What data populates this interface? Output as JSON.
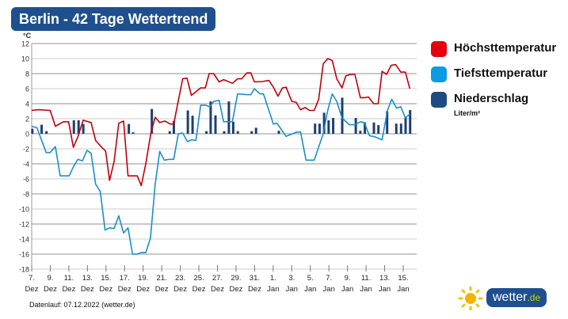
{
  "title": "Berlin - 42 Tage Wettertrend",
  "legend": [
    {
      "label": "Höchsttemperatur",
      "color": "#e3000f"
    },
    {
      "label": "Tiefsttemperatur",
      "color": "#0a9be3"
    },
    {
      "label": "Niederschlag",
      "color": "#1f4a84"
    }
  ],
  "legend_unit": "Liter/m²",
  "footer": "Datenlauf: 07.12.2022 (wetter.de)",
  "logo": {
    "main": "wetter",
    "suffix": ".de"
  },
  "chart_data": {
    "type": "line",
    "ylabel": "°C",
    "ylim": [
      -18,
      12
    ],
    "yticks": [
      12,
      10,
      8,
      6,
      4,
      2,
      0,
      -2,
      -4,
      -6,
      -8,
      -10,
      -12,
      -14,
      -16,
      -18
    ],
    "xlim": [
      0,
      42
    ],
    "grid": true,
    "legend_position": "right",
    "xticks": [
      {
        "day": "7.",
        "month": "Dez"
      },
      {
        "day": "9.",
        "month": "Dez"
      },
      {
        "day": "11.",
        "month": "Dez"
      },
      {
        "day": "13.",
        "month": "Dez"
      },
      {
        "day": "15.",
        "month": "Dez"
      },
      {
        "day": "17.",
        "month": "Dez"
      },
      {
        "day": "19.",
        "month": "Dez"
      },
      {
        "day": "21.",
        "month": "Dez"
      },
      {
        "day": "23.",
        "month": "Dez"
      },
      {
        "day": "25.",
        "month": "Dez"
      },
      {
        "day": "27.",
        "month": "Dez"
      },
      {
        "day": "29.",
        "month": "Dez"
      },
      {
        "day": "31.",
        "month": "Dez"
      },
      {
        "day": "1.",
        "month": "Jan"
      },
      {
        "day": "3.",
        "month": "Jan"
      },
      {
        "day": "5.",
        "month": "Jan"
      },
      {
        "day": "7.",
        "month": "Jan"
      },
      {
        "day": "9.",
        "month": "Jan"
      },
      {
        "day": "11.",
        "month": "Jan"
      },
      {
        "day": "13.",
        "month": "Jan"
      },
      {
        "day": "15.",
        "month": "Jan"
      }
    ],
    "series": [
      {
        "name": "Höchsttemperatur",
        "type": "line",
        "color": "#c0000c",
        "points": [
          [
            0,
            3.1
          ],
          [
            0.73,
            3.2
          ],
          [
            2.04,
            3.1
          ],
          [
            2.62,
            1.0
          ],
          [
            3.5,
            1.6
          ],
          [
            4.08,
            1.6
          ],
          [
            4.6,
            -1.8
          ],
          [
            5.1,
            -0.4
          ],
          [
            5.69,
            1.8
          ],
          [
            6.56,
            1.5
          ],
          [
            7.06,
            -0.9
          ],
          [
            7.73,
            -1.8
          ],
          [
            8.16,
            -2.3
          ],
          [
            8.6,
            -6.2
          ],
          [
            9.1,
            -3.7
          ],
          [
            9.62,
            1.4
          ],
          [
            10.15,
            1.7
          ],
          [
            10.64,
            -5.6
          ],
          [
            11.66,
            -5.6
          ],
          [
            12.1,
            -6.9
          ],
          [
            12.6,
            -4.0
          ],
          [
            13.18,
            0.2
          ],
          [
            13.64,
            2.2
          ],
          [
            14.14,
            1.5
          ],
          [
            14.72,
            1.7
          ],
          [
            15.3,
            1.3
          ],
          [
            15.69,
            1.3
          ],
          [
            16.2,
            4.4
          ],
          [
            16.68,
            7.3
          ],
          [
            17.15,
            7.4
          ],
          [
            17.64,
            5.1
          ],
          [
            18.66,
            6.1
          ],
          [
            19.18,
            6.1
          ],
          [
            19.6,
            8.0
          ],
          [
            20.1,
            8.0
          ],
          [
            20.7,
            6.9
          ],
          [
            21.2,
            7.2
          ],
          [
            22.16,
            6.7
          ],
          [
            22.74,
            7.3
          ],
          [
            23.18,
            7.3
          ],
          [
            23.77,
            8.1
          ],
          [
            24.2,
            8.1
          ],
          [
            24.6,
            6.9
          ],
          [
            25.5,
            6.95
          ],
          [
            26.2,
            7.1
          ],
          [
            26.7,
            6.2
          ],
          [
            27.2,
            5.0
          ],
          [
            27.7,
            6.1
          ],
          [
            28.1,
            6.2
          ],
          [
            28.73,
            4.3
          ],
          [
            29.2,
            4.2
          ],
          [
            29.7,
            3.2
          ],
          [
            30.2,
            3.5
          ],
          [
            30.68,
            3.1
          ],
          [
            31.2,
            3.1
          ],
          [
            31.7,
            4.6
          ],
          [
            32.2,
            9.3
          ],
          [
            32.7,
            10.0
          ],
          [
            33.2,
            9.75
          ],
          [
            33.7,
            7.3
          ],
          [
            34.27,
            6.1
          ],
          [
            34.7,
            7.7
          ],
          [
            35.2,
            7.9
          ],
          [
            35.7,
            7.9
          ],
          [
            36.3,
            4.8
          ],
          [
            36.75,
            4.8
          ],
          [
            37.2,
            4.9
          ],
          [
            37.77,
            4.0
          ],
          [
            38.27,
            4.0
          ],
          [
            38.7,
            8.3
          ],
          [
            39.2,
            7.9
          ],
          [
            39.7,
            9.1
          ],
          [
            40.2,
            9.2
          ],
          [
            40.77,
            8.2
          ],
          [
            41.27,
            8.2
          ],
          [
            41.76,
            6.0
          ]
        ]
      },
      {
        "name": "Tiefsttemperatur",
        "type": "line",
        "color": "#1a8fc8",
        "points": [
          [
            0,
            1.0
          ],
          [
            0.58,
            0.8
          ],
          [
            1.6,
            -2.5
          ],
          [
            2.04,
            -2.5
          ],
          [
            2.62,
            -1.7
          ],
          [
            3.15,
            -5.6
          ],
          [
            4.14,
            -5.6
          ],
          [
            4.6,
            -4.4
          ],
          [
            5.1,
            -3.4
          ],
          [
            5.6,
            -3.6
          ],
          [
            6.12,
            -2.2
          ],
          [
            6.56,
            -2.6
          ],
          [
            7.06,
            -6.7
          ],
          [
            7.58,
            -7.7
          ],
          [
            8.1,
            -12.8
          ],
          [
            8.6,
            -12.5
          ],
          [
            9.1,
            -12.6
          ],
          [
            9.62,
            -10.9
          ],
          [
            10.15,
            -13.2
          ],
          [
            10.64,
            -12.5
          ],
          [
            11.14,
            -16.0
          ],
          [
            11.66,
            -16.0
          ],
          [
            12.1,
            -15.8
          ],
          [
            12.6,
            -15.8
          ],
          [
            13.12,
            -13.9
          ],
          [
            13.64,
            -6.7
          ],
          [
            14.14,
            -2.35
          ],
          [
            14.64,
            -3.5
          ],
          [
            15.2,
            -3.4
          ],
          [
            15.69,
            -3.4
          ],
          [
            16.2,
            0
          ],
          [
            16.68,
            0.1
          ],
          [
            17.2,
            -1.05
          ],
          [
            17.64,
            -0.8
          ],
          [
            18.14,
            -0.9
          ],
          [
            18.66,
            3.8
          ],
          [
            19.18,
            3.8
          ],
          [
            19.68,
            3.6
          ],
          [
            20.1,
            4.3
          ],
          [
            20.7,
            4.45
          ],
          [
            21.2,
            1.6
          ],
          [
            22.16,
            1.6
          ],
          [
            22.74,
            5.3
          ],
          [
            23.77,
            5.2
          ],
          [
            24.2,
            5.2
          ],
          [
            24.6,
            6.0
          ],
          [
            25.2,
            5.3
          ],
          [
            25.6,
            5.3
          ],
          [
            26.7,
            1.3
          ],
          [
            27.1,
            1.4
          ],
          [
            28.1,
            -0.35
          ],
          [
            29.2,
            0.2
          ],
          [
            29.7,
            0.25
          ],
          [
            30.3,
            -3.5
          ],
          [
            31.2,
            -3.5
          ],
          [
            32.2,
            0
          ],
          [
            32.7,
            3.1
          ],
          [
            33.2,
            5.3
          ],
          [
            33.7,
            4.3
          ],
          [
            34.27,
            2.1
          ],
          [
            35.1,
            1.2
          ],
          [
            35.7,
            1.2
          ],
          [
            36.3,
            1.6
          ],
          [
            36.75,
            1.5
          ],
          [
            37.3,
            -0.25
          ],
          [
            37.9,
            -0.4
          ],
          [
            38.7,
            -0.8
          ],
          [
            39.3,
            3.1
          ],
          [
            39.77,
            4.6
          ],
          [
            40.3,
            3.4
          ],
          [
            40.77,
            3.6
          ],
          [
            41.27,
            2.1
          ],
          [
            41.76,
            2.6
          ]
        ]
      },
      {
        "name": "Niederschlag",
        "type": "bar",
        "color": "#1f3f6e",
        "unit": "Liter/m²",
        "points": [
          [
            0.07,
            0.67
          ],
          [
            1.1,
            1.2
          ],
          [
            1.63,
            0.35
          ],
          [
            4.66,
            1.8
          ],
          [
            5.18,
            1.8
          ],
          [
            5.7,
            1.3
          ],
          [
            10.73,
            1.3
          ],
          [
            11.2,
            0.2
          ],
          [
            13.27,
            3.3
          ],
          [
            15.25,
            0.35
          ],
          [
            15.7,
            1.7
          ],
          [
            17.25,
            3.1
          ],
          [
            17.77,
            2.4
          ],
          [
            19.3,
            0.35
          ],
          [
            19.77,
            4.3
          ],
          [
            20.3,
            2.45
          ],
          [
            21.26,
            0.35
          ],
          [
            21.78,
            4.3
          ],
          [
            22.26,
            1.6
          ],
          [
            22.77,
            0.35
          ],
          [
            24.3,
            0.35
          ],
          [
            24.78,
            0.8
          ],
          [
            27.3,
            0.4
          ],
          [
            31.3,
            1.35
          ],
          [
            31.8,
            1.35
          ],
          [
            32.3,
            2.8
          ],
          [
            32.8,
            1.8
          ],
          [
            33.3,
            2.1
          ],
          [
            34.3,
            4.8
          ],
          [
            35.8,
            2.1
          ],
          [
            36.3,
            0.4
          ],
          [
            36.8,
            1.5
          ],
          [
            37.8,
            1.5
          ],
          [
            38.3,
            1.15
          ],
          [
            39.26,
            3.0
          ],
          [
            40.27,
            1.35
          ],
          [
            40.8,
            1.35
          ],
          [
            41.3,
            2.2
          ],
          [
            41.8,
            3.15
          ]
        ]
      }
    ]
  }
}
